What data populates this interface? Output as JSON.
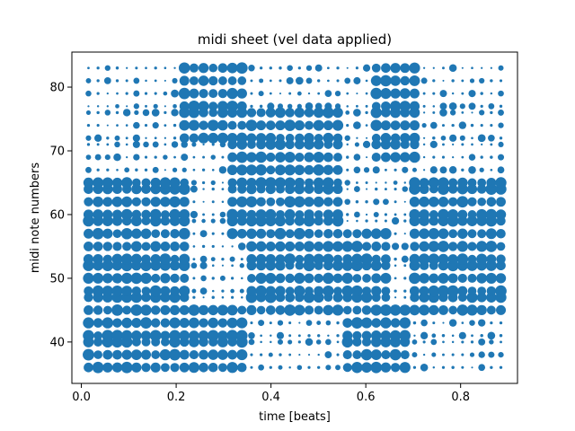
{
  "chart_data": {
    "type": "scatter",
    "title": "midi sheet (vel data applied)",
    "xlabel": "time [beats]",
    "ylabel": "midi note numbers",
    "xlim": [
      -0.02,
      0.92
    ],
    "ylim": [
      33.5,
      85.5
    ],
    "xticks": [
      0.0,
      0.2,
      0.4,
      0.6,
      0.8
    ],
    "xtick_labels": [
      "0.0",
      "0.2",
      "0.4",
      "0.6",
      "0.8"
    ],
    "yticks": [
      40,
      50,
      60,
      70,
      80
    ],
    "ytick_labels": [
      "40",
      "50",
      "60",
      "70",
      "80"
    ],
    "grid": false,
    "color": "#1f77b4",
    "notes": [
      36,
      38,
      40,
      41,
      43,
      45,
      47,
      48,
      50,
      52,
      53,
      55,
      57,
      59,
      60,
      62,
      64,
      65,
      67,
      69,
      71,
      72,
      74,
      76,
      77,
      79,
      81,
      83
    ],
    "time_steps": {
      "start": 0.015,
      "end": 0.885,
      "count": 44
    },
    "velocity_range": [
      5,
      127
    ],
    "marker_area_range": [
      4,
      160
    ],
    "dense_regions": [
      {
        "x_range": [
          0.01,
          0.22
        ],
        "y_range": [
          36,
          66
        ]
      },
      {
        "x_range": [
          0.15,
          0.35
        ],
        "y_range": [
          36,
          45
        ]
      },
      {
        "x_range": [
          0.2,
          0.35
        ],
        "y_range": [
          72,
          83
        ]
      },
      {
        "x_range": [
          0.3,
          0.55
        ],
        "y_range": [
          57,
          76
        ]
      },
      {
        "x_range": [
          0.35,
          0.65
        ],
        "y_range": [
          45,
          57
        ]
      },
      {
        "x_range": [
          0.55,
          0.7
        ],
        "y_range": [
          36,
          45
        ]
      },
      {
        "x_range": [
          0.62,
          0.72
        ],
        "y_range": [
          69,
          83
        ]
      },
      {
        "x_range": [
          0.7,
          0.89
        ],
        "y_range": [
          45,
          66
        ]
      }
    ]
  }
}
